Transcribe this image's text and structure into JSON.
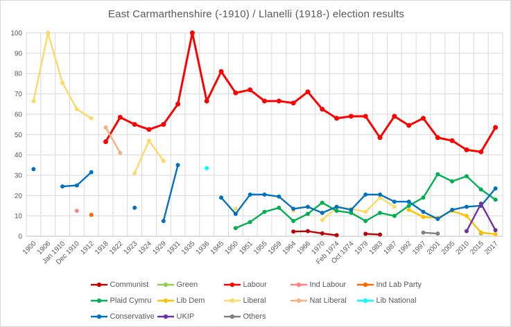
{
  "chart_data": {
    "type": "line",
    "title": "East Carmarthenshire (-1910) / Llanelli (1918-) election results",
    "xlabel": "",
    "ylabel": "",
    "ylim": [
      0,
      100
    ],
    "yticks": [
      0,
      10,
      20,
      30,
      40,
      50,
      60,
      70,
      80,
      90,
      100
    ],
    "grid": true,
    "legend_position": "bottom",
    "axis_text_color": "#595959",
    "grid_color": "#d9d9d9",
    "axis_line_color": "#bfbfbf",
    "categories": [
      "1900",
      "1906",
      "Jan 1910",
      "Dec 1910",
      "1912",
      "1918",
      "1922",
      "1923",
      "1924",
      "1929",
      "1931",
      "1935",
      "1936",
      "1945",
      "1950",
      "1951",
      "1955",
      "1959",
      "1964",
      "1966",
      "1970",
      "Feb 1974",
      "Oct 1974",
      "1979",
      "1983",
      "1987",
      "1992",
      "1997",
      "2001",
      "2005",
      "2010",
      "2015",
      "2017"
    ],
    "series": [
      {
        "name": "Communist",
        "color": "#c00000",
        "segments": [
          [
            [
              "1964",
              2.3
            ],
            [
              "1966",
              2.5
            ],
            [
              "1970",
              1.4
            ],
            [
              "Feb 1974",
              0.5
            ]
          ],
          [
            [
              "1979",
              1.2
            ],
            [
              "1983",
              0.8
            ]
          ]
        ]
      },
      {
        "name": "Green",
        "color": "#92d050",
        "segments": [
          [
            [
              "2015",
              1.5
            ]
          ]
        ]
      },
      {
        "name": "Labour",
        "color": "#ff0000",
        "width": 3,
        "marker": 3.5,
        "segments": [
          [
            [
              "1918",
              46.5
            ],
            [
              "1922",
              58.5
            ],
            [
              "1923",
              55
            ],
            [
              "1924",
              52.5
            ],
            [
              "1929",
              55
            ],
            [
              "1931",
              65
            ],
            [
              "1935",
              100
            ],
            [
              "1936",
              66.5
            ],
            [
              "1945",
              81
            ],
            [
              "1950",
              70.5
            ],
            [
              "1951",
              72
            ],
            [
              "1955",
              66.5
            ],
            [
              "1959",
              66.5
            ],
            [
              "1964",
              65.5
            ],
            [
              "1966",
              71
            ],
            [
              "1970",
              62.5
            ],
            [
              "Feb 1974",
              58
            ],
            [
              "Oct 1974",
              59
            ],
            [
              "1979",
              59
            ],
            [
              "1983",
              48.5
            ],
            [
              "1987",
              59
            ],
            [
              "1992",
              54.5
            ],
            [
              "1997",
              58
            ],
            [
              "2001",
              48.5
            ],
            [
              "2005",
              47
            ],
            [
              "2010",
              42.5
            ],
            [
              "2015",
              41.5
            ],
            [
              "2017",
              53.5
            ]
          ]
        ]
      },
      {
        "name": "Ind Labour",
        "color": "#ff8080",
        "segments": [
          [
            [
              "Dec 1910",
              12.5
            ]
          ]
        ]
      },
      {
        "name": "Ind Lab Party",
        "color": "#ff6600",
        "segments": [
          [
            [
              "1912",
              10.5
            ]
          ]
        ]
      },
      {
        "name": "Plaid Cymru",
        "color": "#00b050",
        "segments": [
          [
            [
              "1950",
              4
            ],
            [
              "1951",
              7
            ],
            [
              "1955",
              12
            ],
            [
              "1959",
              14
            ],
            [
              "1964",
              7.5
            ],
            [
              "1966",
              11
            ],
            [
              "1970",
              16.5
            ],
            [
              "Feb 1974",
              12.5
            ],
            [
              "Oct 1974",
              11.5
            ],
            [
              "1979",
              7.5
            ],
            [
              "1983",
              11.5
            ],
            [
              "1987",
              10
            ],
            [
              "1992",
              15
            ],
            [
              "1997",
              19
            ],
            [
              "2001",
              30.5
            ],
            [
              "2005",
              27
            ],
            [
              "2010",
              29.5
            ],
            [
              "2015",
              23
            ],
            [
              "2017",
              18
            ]
          ]
        ]
      },
      {
        "name": "Lib Dem",
        "color": "#ffc000",
        "segments": [
          [
            [
              "1992",
              13
            ],
            [
              "1997",
              9.5
            ],
            [
              "2001",
              9
            ],
            [
              "2005",
              12.5
            ],
            [
              "2010",
              10
            ],
            [
              "2015",
              1.8
            ],
            [
              "2017",
              1
            ]
          ]
        ]
      },
      {
        "name": "Liberal",
        "color": "#ffd966",
        "segments": [
          [
            [
              "1900",
              66.5
            ],
            [
              "1906",
              100
            ],
            [
              "Jan 1910",
              75.5
            ],
            [
              "Dec 1910",
              62.5
            ],
            [
              "1912",
              58
            ]
          ],
          [
            [
              "1923",
              31
            ],
            [
              "1924",
              47
            ],
            [
              "1929",
              37
            ]
          ],
          [
            [
              "1950",
              13.5
            ]
          ],
          [
            [
              "1964",
              12.5
            ]
          ],
          [
            [
              "1970",
              8
            ],
            [
              "Feb 1974",
              14
            ],
            [
              "Oct 1974",
              13.5
            ],
            [
              "1979",
              12
            ],
            [
              "1983",
              19
            ],
            [
              "1987",
              14.5
            ]
          ]
        ]
      },
      {
        "name": "Nat Liberal",
        "color": "#f4b183",
        "segments": [
          [
            [
              "1918",
              53.5
            ],
            [
              "1922",
              41
            ]
          ]
        ]
      },
      {
        "name": "Lib National",
        "color": "#00ffff",
        "segments": [
          [
            [
              "1936",
              33.5
            ]
          ]
        ]
      },
      {
        "name": "Conservative",
        "color": "#0070c0",
        "segments": [
          [
            [
              "1900",
              33
            ]
          ],
          [
            [
              "Jan 1910",
              24.5
            ],
            [
              "Dec 1910",
              25
            ],
            [
              "1912",
              31.5
            ]
          ],
          [
            [
              "1923",
              14
            ]
          ],
          [
            [
              "1929",
              7.5
            ],
            [
              "1931",
              35
            ]
          ],
          [
            [
              "1945",
              19
            ],
            [
              "1950",
              11
            ],
            [
              "1951",
              20.5
            ],
            [
              "1955",
              20.5
            ],
            [
              "1959",
              19.5
            ],
            [
              "1964",
              13.5
            ],
            [
              "1966",
              14.5
            ],
            [
              "1970",
              11.5
            ],
            [
              "Feb 1974",
              14.5
            ],
            [
              "Oct 1974",
              13
            ],
            [
              "1979",
              20.5
            ],
            [
              "1983",
              20.5
            ],
            [
              "1987",
              17
            ],
            [
              "1992",
              17
            ],
            [
              "1997",
              12
            ],
            [
              "2001",
              8.5
            ],
            [
              "2005",
              13
            ],
            [
              "2010",
              14.5
            ],
            [
              "2015",
              15
            ],
            [
              "2017",
              23.5
            ]
          ]
        ]
      },
      {
        "name": "UKIP",
        "color": "#7030a0",
        "segments": [
          [
            [
              "2010",
              2.5
            ],
            [
              "2015",
              16
            ],
            [
              "2017",
              3
            ]
          ]
        ]
      },
      {
        "name": "Others",
        "color": "#808080",
        "segments": [
          [
            [
              "1997",
              1.8
            ],
            [
              "2001",
              1.3
            ]
          ],
          [
            [
              "2015",
              1.5
            ]
          ]
        ]
      }
    ],
    "draw_order": [
      "Green",
      "Others",
      "Liberal",
      "Lib Dem",
      "Plaid Cymru",
      "Conservative",
      "UKIP",
      "Communist",
      "Labour",
      "Nat Liberal",
      "Ind Labour",
      "Ind Lab Party",
      "Lib National"
    ]
  }
}
